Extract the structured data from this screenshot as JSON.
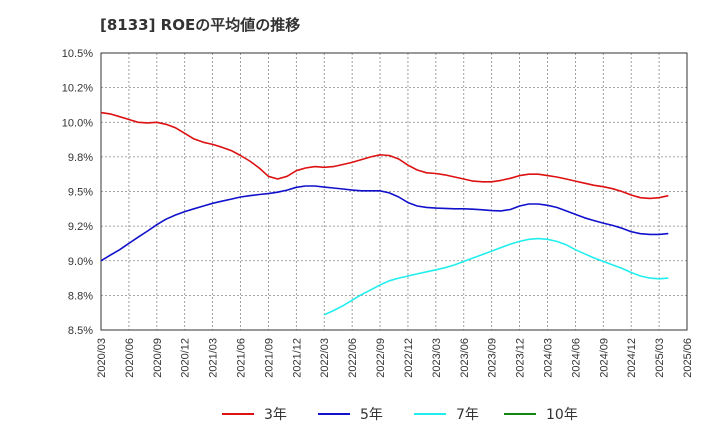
{
  "chart_data": {
    "type": "line",
    "title": "[8133]  ROEの平均値の推移",
    "xlabel": "",
    "ylabel": "",
    "ylim": [
      8.5,
      10.5
    ],
    "yticks": [
      "8.5%",
      "8.8%",
      "9.0%",
      "9.2%",
      "9.5%",
      "9.8%",
      "10.0%",
      "10.2%",
      "10.5%"
    ],
    "categories": [
      "2020/03",
      "2020/06",
      "2020/09",
      "2020/12",
      "2021/03",
      "2021/06",
      "2021/09",
      "2021/12",
      "2022/03",
      "2022/06",
      "2022/09",
      "2022/12",
      "2023/03",
      "2023/06",
      "2023/09",
      "2023/12",
      "2024/03",
      "2024/06",
      "2024/09",
      "2024/12",
      "2025/03",
      "2025/06"
    ],
    "x_range": [
      0,
      21
    ],
    "grid": true,
    "legend_position": "bottom",
    "series": [
      {
        "name": "3年",
        "color": "#dd1111",
        "points": [
          [
            0,
            10.07
          ],
          [
            0.33,
            10.06
          ],
          [
            0.67,
            10.04
          ],
          [
            1,
            10.02
          ],
          [
            1.33,
            10.0
          ],
          [
            1.67,
            9.995
          ],
          [
            2,
            10.0
          ],
          [
            2.33,
            9.985
          ],
          [
            2.67,
            9.96
          ],
          [
            3,
            9.92
          ],
          [
            3.33,
            9.88
          ],
          [
            3.67,
            9.855
          ],
          [
            4,
            9.84
          ],
          [
            4.33,
            9.82
          ],
          [
            4.67,
            9.795
          ],
          [
            5,
            9.76
          ],
          [
            5.33,
            9.72
          ],
          [
            5.67,
            9.67
          ],
          [
            6,
            9.61
          ],
          [
            6.33,
            9.59
          ],
          [
            6.67,
            9.61
          ],
          [
            7,
            9.65
          ],
          [
            7.33,
            9.67
          ],
          [
            7.67,
            9.68
          ],
          [
            8,
            9.675
          ],
          [
            8.33,
            9.68
          ],
          [
            8.67,
            9.695
          ],
          [
            9,
            9.71
          ],
          [
            9.33,
            9.73
          ],
          [
            9.67,
            9.75
          ],
          [
            10,
            9.765
          ],
          [
            10.33,
            9.76
          ],
          [
            10.67,
            9.735
          ],
          [
            11,
            9.69
          ],
          [
            11.33,
            9.655
          ],
          [
            11.67,
            9.635
          ],
          [
            12,
            9.63
          ],
          [
            12.33,
            9.62
          ],
          [
            12.67,
            9.605
          ],
          [
            13,
            9.59
          ],
          [
            13.33,
            9.575
          ],
          [
            13.67,
            9.57
          ],
          [
            14,
            9.57
          ],
          [
            14.33,
            9.58
          ],
          [
            14.67,
            9.595
          ],
          [
            15,
            9.615
          ],
          [
            15.33,
            9.625
          ],
          [
            15.67,
            9.625
          ],
          [
            16,
            9.615
          ],
          [
            16.33,
            9.605
          ],
          [
            16.67,
            9.59
          ],
          [
            17,
            9.575
          ],
          [
            17.33,
            9.56
          ],
          [
            17.67,
            9.545
          ],
          [
            18,
            9.535
          ],
          [
            18.33,
            9.52
          ],
          [
            18.67,
            9.5
          ],
          [
            19,
            9.475
          ],
          [
            19.33,
            9.455
          ],
          [
            19.67,
            9.45
          ],
          [
            20,
            9.455
          ],
          [
            20.33,
            9.47
          ]
        ]
      },
      {
        "name": "5年",
        "color": "#1111cc",
        "points": [
          [
            0,
            9.0
          ],
          [
            0.33,
            9.04
          ],
          [
            0.67,
            9.08
          ],
          [
            1,
            9.125
          ],
          [
            1.33,
            9.17
          ],
          [
            1.67,
            9.215
          ],
          [
            2,
            9.26
          ],
          [
            2.33,
            9.3
          ],
          [
            2.67,
            9.33
          ],
          [
            3,
            9.355
          ],
          [
            3.33,
            9.375
          ],
          [
            3.67,
            9.395
          ],
          [
            4,
            9.415
          ],
          [
            4.33,
            9.43
          ],
          [
            4.67,
            9.445
          ],
          [
            5,
            9.46
          ],
          [
            5.33,
            9.47
          ],
          [
            5.67,
            9.478
          ],
          [
            6,
            9.485
          ],
          [
            6.33,
            9.495
          ],
          [
            6.67,
            9.51
          ],
          [
            7,
            9.53
          ],
          [
            7.33,
            9.54
          ],
          [
            7.67,
            9.54
          ],
          [
            8,
            9.532
          ],
          [
            8.33,
            9.525
          ],
          [
            8.67,
            9.518
          ],
          [
            9,
            9.51
          ],
          [
            9.33,
            9.505
          ],
          [
            9.67,
            9.505
          ],
          [
            10,
            9.505
          ],
          [
            10.33,
            9.49
          ],
          [
            10.67,
            9.46
          ],
          [
            11,
            9.42
          ],
          [
            11.33,
            9.395
          ],
          [
            11.67,
            9.385
          ],
          [
            12,
            9.38
          ],
          [
            12.33,
            9.378
          ],
          [
            12.67,
            9.375
          ],
          [
            13,
            9.375
          ],
          [
            13.33,
            9.372
          ],
          [
            13.67,
            9.368
          ],
          [
            14,
            9.362
          ],
          [
            14.33,
            9.36
          ],
          [
            14.67,
            9.37
          ],
          [
            15,
            9.395
          ],
          [
            15.33,
            9.41
          ],
          [
            15.67,
            9.41
          ],
          [
            16,
            9.4
          ],
          [
            16.33,
            9.385
          ],
          [
            16.67,
            9.36
          ],
          [
            17,
            9.335
          ],
          [
            17.33,
            9.31
          ],
          [
            17.67,
            9.29
          ],
          [
            18,
            9.272
          ],
          [
            18.33,
            9.255
          ],
          [
            18.67,
            9.235
          ],
          [
            19,
            9.21
          ],
          [
            19.33,
            9.195
          ],
          [
            19.67,
            9.19
          ],
          [
            20,
            9.19
          ],
          [
            20.33,
            9.196
          ]
        ]
      },
      {
        "name": "7年",
        "color": "#22eeee",
        "points": [
          [
            8,
            8.61
          ],
          [
            8.33,
            8.64
          ],
          [
            8.67,
            8.675
          ],
          [
            9,
            8.715
          ],
          [
            9.33,
            8.755
          ],
          [
            9.67,
            8.79
          ],
          [
            10,
            8.825
          ],
          [
            10.33,
            8.855
          ],
          [
            10.67,
            8.875
          ],
          [
            11,
            8.89
          ],
          [
            11.33,
            8.905
          ],
          [
            11.67,
            8.92
          ],
          [
            12,
            8.935
          ],
          [
            12.33,
            8.95
          ],
          [
            12.67,
            8.97
          ],
          [
            13,
            8.995
          ],
          [
            13.33,
            9.02
          ],
          [
            13.67,
            9.045
          ],
          [
            14,
            9.07
          ],
          [
            14.33,
            9.095
          ],
          [
            14.67,
            9.12
          ],
          [
            15,
            9.14
          ],
          [
            15.33,
            9.155
          ],
          [
            15.67,
            9.16
          ],
          [
            16,
            9.155
          ],
          [
            16.33,
            9.14
          ],
          [
            16.67,
            9.115
          ],
          [
            17,
            9.08
          ],
          [
            17.33,
            9.05
          ],
          [
            17.67,
            9.02
          ],
          [
            18,
            8.995
          ],
          [
            18.33,
            8.97
          ],
          [
            18.67,
            8.945
          ],
          [
            19,
            8.915
          ],
          [
            19.33,
            8.89
          ],
          [
            19.67,
            8.875
          ],
          [
            20,
            8.87
          ],
          [
            20.33,
            8.875
          ]
        ]
      },
      {
        "name": "10年",
        "color": "#118811",
        "points": []
      }
    ]
  }
}
